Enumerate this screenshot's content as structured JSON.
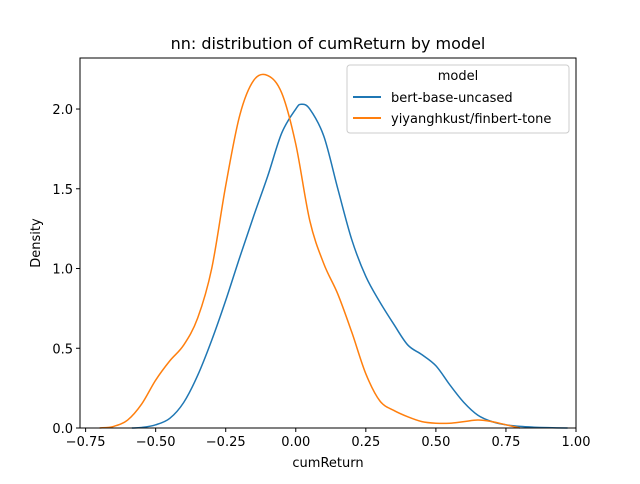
{
  "chart_data": {
    "type": "line",
    "title": "nn: distribution of cumReturn by model",
    "xlabel": "cumReturn",
    "ylabel": "Density",
    "xlim": [
      -0.77,
      1.0
    ],
    "ylim": [
      0.0,
      2.32
    ],
    "xticks": [
      -0.75,
      -0.5,
      -0.25,
      0.0,
      0.25,
      0.5,
      0.75,
      1.0
    ],
    "xtick_labels": [
      "−0.75",
      "−0.50",
      "−0.25",
      "0.00",
      "0.25",
      "0.50",
      "0.75",
      "1.00"
    ],
    "yticks": [
      0.0,
      0.5,
      1.0,
      1.5,
      2.0
    ],
    "ytick_labels": [
      "0.0",
      "0.5",
      "1.0",
      "1.5",
      "2.0"
    ],
    "grid": false,
    "legend": {
      "title": "model",
      "placement": "top-right",
      "entries": [
        "bert-base-uncased",
        "yiyanghkust/finbert-tone"
      ]
    },
    "series": [
      {
        "name": "bert-base-uncased",
        "color": "#1f77b4",
        "x": [
          -0.585,
          -0.55,
          -0.5,
          -0.45,
          -0.4,
          -0.35,
          -0.3,
          -0.25,
          -0.2,
          -0.15,
          -0.1,
          -0.05,
          0.0,
          0.02,
          0.05,
          0.1,
          0.15,
          0.2,
          0.25,
          0.3,
          0.35,
          0.4,
          0.45,
          0.5,
          0.55,
          0.6,
          0.65,
          0.7,
          0.75,
          0.8,
          0.85,
          0.9,
          0.97
        ],
        "y": [
          0.0,
          0.003,
          0.02,
          0.06,
          0.16,
          0.33,
          0.55,
          0.8,
          1.07,
          1.33,
          1.58,
          1.85,
          2.0,
          2.03,
          2.0,
          1.83,
          1.5,
          1.18,
          0.95,
          0.79,
          0.65,
          0.52,
          0.46,
          0.39,
          0.27,
          0.16,
          0.08,
          0.04,
          0.02,
          0.01,
          0.005,
          0.002,
          0.0
        ]
      },
      {
        "name": "yiyanghkust/finbert-tone",
        "color": "#ff7f0e",
        "x": [
          -0.7,
          -0.65,
          -0.6,
          -0.55,
          -0.5,
          -0.45,
          -0.4,
          -0.35,
          -0.3,
          -0.25,
          -0.2,
          -0.15,
          -0.1,
          -0.05,
          0.0,
          0.05,
          0.1,
          0.15,
          0.2,
          0.25,
          0.3,
          0.35,
          0.4,
          0.45,
          0.5,
          0.55,
          0.6,
          0.65,
          0.7,
          0.75,
          0.8
        ],
        "y": [
          0.0,
          0.01,
          0.05,
          0.15,
          0.3,
          0.42,
          0.52,
          0.69,
          1.0,
          1.52,
          1.96,
          2.18,
          2.21,
          2.1,
          1.78,
          1.3,
          1.03,
          0.84,
          0.6,
          0.34,
          0.17,
          0.11,
          0.07,
          0.04,
          0.03,
          0.03,
          0.04,
          0.05,
          0.04,
          0.02,
          0.0
        ]
      }
    ]
  }
}
